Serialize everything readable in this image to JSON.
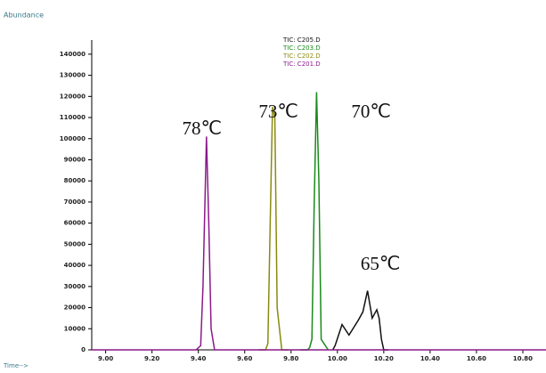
{
  "chart_data": {
    "type": "line",
    "y_label": "Abundance",
    "x_label": "Time-->",
    "xlim": [
      8.94,
      10.9
    ],
    "ylim": [
      0,
      145000
    ],
    "xticks": [
      {
        "value": 9.0,
        "label": "9.00"
      },
      {
        "value": 9.2,
        "label": "9.20"
      },
      {
        "value": 9.4,
        "label": "9.40"
      },
      {
        "value": 9.6,
        "label": "9.60"
      },
      {
        "value": 9.8,
        "label": "9.80"
      },
      {
        "value": 10.0,
        "label": "10.00"
      },
      {
        "value": 10.2,
        "label": "10.20"
      },
      {
        "value": 10.4,
        "label": "10.40"
      },
      {
        "value": 10.6,
        "label": "10.60"
      },
      {
        "value": 10.8,
        "label": "10.80"
      }
    ],
    "yticks": [
      0,
      10000,
      20000,
      30000,
      40000,
      50000,
      60000,
      70000,
      80000,
      90000,
      100000,
      110000,
      120000,
      130000,
      140000
    ],
    "series": [
      {
        "name": "TIC: C205.D",
        "color": "#111111",
        "x": [
          9.98,
          9.99,
          10.02,
          10.05,
          10.09,
          10.11,
          10.13,
          10.15,
          10.17,
          10.18,
          10.19,
          10.2,
          10.22
        ],
        "values": [
          0,
          2000,
          12000,
          7000,
          14000,
          18000,
          28000,
          15000,
          19000,
          15000,
          5000,
          0,
          0
        ]
      },
      {
        "name": "TIC: C203.D",
        "color": "#1a8a1a",
        "x": [
          9.84,
          9.87,
          9.88,
          9.89,
          9.9,
          9.91,
          9.92,
          9.93,
          9.96
        ],
        "values": [
          0,
          0,
          1000,
          5000,
          70000,
          122000,
          80000,
          5000,
          0
        ]
      },
      {
        "name": "TIC: C202.D",
        "color": "#8a8a10",
        "x": [
          9.66,
          9.69,
          9.7,
          9.71,
          9.72,
          9.73,
          9.74,
          9.76,
          9.79
        ],
        "values": [
          0,
          0,
          3000,
          60000,
          115000,
          110000,
          20000,
          0,
          0
        ]
      },
      {
        "name": "TIC: C201.D",
        "color": "#8a1a8a",
        "x": [
          8.94,
          9.39,
          9.41,
          9.42,
          9.435,
          9.445,
          9.455,
          9.47,
          9.5,
          10.9
        ],
        "values": [
          0,
          0,
          2000,
          30000,
          101000,
          60000,
          10000,
          0,
          0,
          0
        ]
      }
    ],
    "annotations": [
      {
        "text": "78℃",
        "x": 9.33,
        "y": 104000
      },
      {
        "text": "73℃",
        "x": 9.66,
        "y": 112000
      },
      {
        "text": "70℃",
        "x": 10.06,
        "y": 112000
      },
      {
        "text": "65℃",
        "x": 10.1,
        "y": 40000
      }
    ]
  }
}
